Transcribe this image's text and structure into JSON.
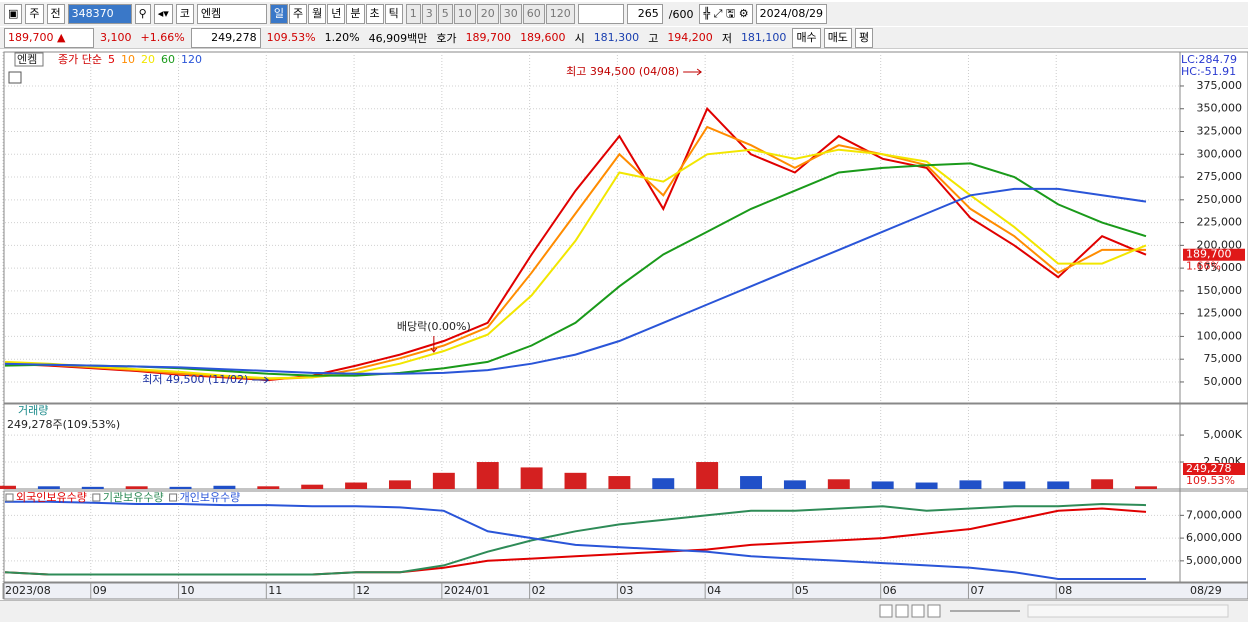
{
  "toolbar": {
    "market": "주",
    "prev": "전",
    "code": "348370",
    "exchange": "코",
    "name": "엔켐",
    "periods": [
      "일",
      "주",
      "월",
      "년",
      "분",
      "초",
      "틱"
    ],
    "intervals": [
      "1",
      "3",
      "5",
      "10",
      "20",
      "30",
      "60",
      "120"
    ],
    "count": "265",
    "max": "/600",
    "date": "2024/08/29"
  },
  "quote": {
    "price": "189,700 ▲",
    "change": "3,100",
    "rate": "+1.66%",
    "volume": "249,278",
    "volume_ratio": "109.53%",
    "turnover": "1.20%",
    "amount": "46,909백만",
    "quote_label": "호가",
    "ask": "189,700",
    "bid": "189,600",
    "open_label": "시",
    "open": "181,300",
    "high_label": "고",
    "high": "194,200",
    "low_label": "저",
    "low": "181,100",
    "buy": "매수",
    "sell": "매도",
    "avg": "평"
  },
  "chart_data": [
    {
      "type": "line",
      "stock_label": "엔켐",
      "legend_title": "종가 단순",
      "categories": [
        "2023/08",
        null,
        "09",
        null,
        "10",
        null,
        "11",
        null,
        "12",
        null,
        "2024/01",
        null,
        "02",
        null,
        "03",
        null,
        "04",
        null,
        "05",
        null,
        "06",
        null,
        "07",
        null,
        "08",
        null,
        "08/29"
      ],
      "series": [
        {
          "name": "5",
          "color": "#e00000",
          "values": [
            70000,
            68000,
            65000,
            62000,
            58000,
            55000,
            52000,
            57000,
            68000,
            80000,
            95000,
            115000,
            190000,
            260000,
            320000,
            240000,
            350000,
            300000,
            280000,
            320000,
            295000,
            285000,
            230000,
            200000,
            165000,
            210000,
            189700
          ]
        },
        {
          "name": "10",
          "color": "#ff8c00",
          "values": [
            71000,
            69000,
            66000,
            63000,
            59000,
            56000,
            53000,
            55000,
            64000,
            76000,
            90000,
            110000,
            170000,
            235000,
            300000,
            255000,
            330000,
            310000,
            285000,
            310000,
            300000,
            288000,
            240000,
            210000,
            170000,
            195000,
            195000
          ]
        },
        {
          "name": "20",
          "color": "#f2e600",
          "values": [
            72000,
            70000,
            67000,
            64000,
            61000,
            57000,
            54000,
            55000,
            60000,
            70000,
            84000,
            102000,
            145000,
            205000,
            280000,
            270000,
            300000,
            305000,
            295000,
            305000,
            300000,
            292000,
            255000,
            220000,
            180000,
            180000,
            200000
          ]
        },
        {
          "name": "60",
          "color": "#1a9a1a",
          "values": [
            68000,
            69000,
            68000,
            67000,
            65000,
            62000,
            59000,
            57000,
            57000,
            60000,
            65000,
            72000,
            90000,
            115000,
            155000,
            190000,
            215000,
            240000,
            260000,
            280000,
            285000,
            288000,
            290000,
            275000,
            245000,
            225000,
            210000
          ]
        },
        {
          "name": "120",
          "color": "#2a55d8",
          "values": [
            70000,
            69000,
            68000,
            67000,
            66000,
            64000,
            62000,
            60000,
            59000,
            59000,
            60000,
            63000,
            70000,
            80000,
            95000,
            115000,
            135000,
            155000,
            175000,
            195000,
            215000,
            235000,
            255000,
            262000,
            262000,
            255000,
            248000
          ]
        }
      ],
      "ylim": [
        26900,
        412300
      ],
      "yticks": [
        {
          "value": 50000,
          "label": "50,000"
        },
        {
          "value": 75000,
          "label": "75,000"
        },
        {
          "value": 100000,
          "label": "100,000"
        },
        {
          "value": 125000,
          "label": "125,000"
        },
        {
          "value": 150000,
          "label": "150,000"
        },
        {
          "value": 175000,
          "label": "175,000"
        },
        {
          "value": 200000,
          "label": "200,000"
        },
        {
          "value": 225000,
          "label": "225,000"
        },
        {
          "value": 250000,
          "label": "250,000"
        },
        {
          "value": 275000,
          "label": "275,000"
        },
        {
          "value": 300000,
          "label": "300,000"
        },
        {
          "value": 325000,
          "label": "325,000"
        },
        {
          "value": 350000,
          "label": "350,000"
        },
        {
          "value": 375000,
          "label": "375,000"
        }
      ],
      "grid": true,
      "annotations": [
        "최고 394,500 (04/08)",
        "최저 49,500 (11/02)",
        "배당락(0.00%)"
      ],
      "lc": "LC:284.79",
      "hc": "HC:-51.91",
      "last_value_label": "189,700",
      "last_rate_label": "1.66%"
    },
    {
      "type": "bar",
      "title": "거래량",
      "subtitle": "249,278주(109.53%)",
      "values": [
        300,
        250,
        200,
        250,
        200,
        300,
        250,
        400,
        600,
        800,
        1500,
        2500,
        2000,
        1500,
        1200,
        1000,
        2500,
        1200,
        800,
        900,
        700,
        600,
        800,
        700,
        700,
        900,
        249.278
      ],
      "colors": [
        "#d42020",
        "#2050c8",
        "#2050c8",
        "#d42020",
        "#2050c8",
        "#2050c8",
        "#d42020",
        "#d42020",
        "#d42020",
        "#d42020",
        "#d42020",
        "#d42020",
        "#d42020",
        "#d42020",
        "#d42020",
        "#2050c8",
        "#d42020",
        "#2050c8",
        "#2050c8",
        "#d42020",
        "#2050c8",
        "#2050c8",
        "#2050c8",
        "#2050c8",
        "#2050c8",
        "#d42020",
        "#d42020"
      ],
      "ylim": [
        0,
        7880
      ],
      "yticks": [
        {
          "value": 2500,
          "label": "2,500K"
        },
        {
          "value": 5000,
          "label": "5,000K"
        }
      ],
      "grid": true,
      "last_value_label": "249,278",
      "last_rate_label": "109.53%"
    },
    {
      "type": "line",
      "series": [
        {
          "name": "외국인보유수량",
          "color": "#e00000",
          "values": [
            4500000,
            4400000,
            4400000,
            4400000,
            4400000,
            4400000,
            4400000,
            4400000,
            4500000,
            4500000,
            4700000,
            5000000,
            5100000,
            5200000,
            5300000,
            5400000,
            5500000,
            5700000,
            5800000,
            5900000,
            6000000,
            6200000,
            6400000,
            6800000,
            7200000,
            7300000,
            7150000
          ]
        },
        {
          "name": "기관보유수량",
          "color": "#2e8b57",
          "values": [
            4500000,
            4400000,
            4400000,
            4400000,
            4400000,
            4400000,
            4400000,
            4400000,
            4500000,
            4500000,
            4800000,
            5400000,
            5900000,
            6300000,
            6600000,
            6800000,
            7000000,
            7200000,
            7200000,
            7300000,
            7400000,
            7200000,
            7300000,
            7400000,
            7400000,
            7500000,
            7450000
          ]
        },
        {
          "name": "개인보유수량",
          "color": "#2a55d8",
          "values": [
            7600000,
            7600000,
            7550000,
            7500000,
            7500000,
            7450000,
            7450000,
            7400000,
            7400000,
            7350000,
            7200000,
            6300000,
            6000000,
            5700000,
            5600000,
            5500000,
            5400000,
            5200000,
            5100000,
            5000000,
            4900000,
            4800000,
            4700000,
            4500000,
            4200000,
            4200000,
            4200000
          ]
        }
      ],
      "ylim": [
        4070000,
        8070000
      ],
      "yticks": [
        {
          "value": 5000000,
          "label": "5,000,000"
        },
        {
          "value": 6000000,
          "label": "6,000,000"
        },
        {
          "value": 7000000,
          "label": "7,000,000"
        }
      ],
      "grid": true
    }
  ]
}
